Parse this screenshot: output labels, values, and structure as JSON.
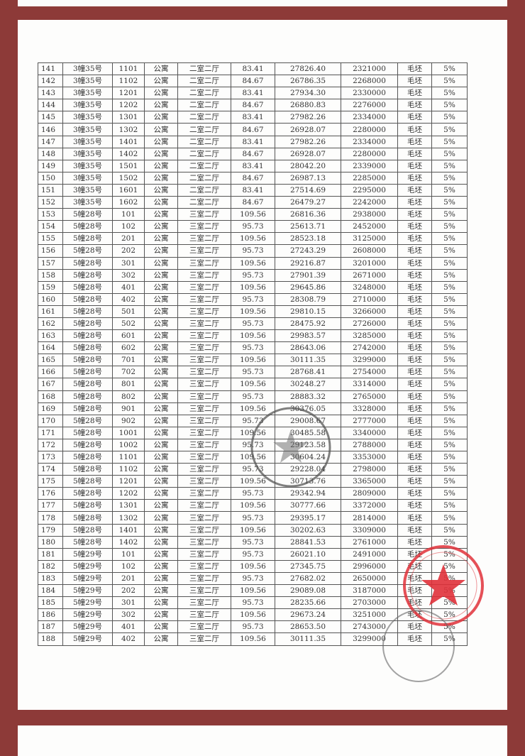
{
  "table": {
    "rows": [
      [
        "141",
        "3幢35号",
        "1101",
        "公寓",
        "二室二厅",
        "83.41",
        "27826.40",
        "2321000",
        "毛坯",
        "5%"
      ],
      [
        "142",
        "3幢35号",
        "1102",
        "公寓",
        "二室二厅",
        "84.67",
        "26786.35",
        "2268000",
        "毛坯",
        "5%"
      ],
      [
        "143",
        "3幢35号",
        "1201",
        "公寓",
        "二室二厅",
        "83.41",
        "27934.30",
        "2330000",
        "毛坯",
        "5%"
      ],
      [
        "144",
        "3幢35号",
        "1202",
        "公寓",
        "二室二厅",
        "84.67",
        "26880.83",
        "2276000",
        "毛坯",
        "5%"
      ],
      [
        "145",
        "3幢35号",
        "1301",
        "公寓",
        "二室二厅",
        "83.41",
        "27982.26",
        "2334000",
        "毛坯",
        "5%"
      ],
      [
        "146",
        "3幢35号",
        "1302",
        "公寓",
        "二室二厅",
        "84.67",
        "26928.07",
        "2280000",
        "毛坯",
        "5%"
      ],
      [
        "147",
        "3幢35号",
        "1401",
        "公寓",
        "二室二厅",
        "83.41",
        "27982.26",
        "2334000",
        "毛坯",
        "5%"
      ],
      [
        "148",
        "3幢35号",
        "1402",
        "公寓",
        "二室二厅",
        "84.67",
        "26928.07",
        "2280000",
        "毛坯",
        "5%"
      ],
      [
        "149",
        "3幢35号",
        "1501",
        "公寓",
        "二室二厅",
        "83.41",
        "28042.20",
        "2339000",
        "毛坯",
        "5%"
      ],
      [
        "150",
        "3幢35号",
        "1502",
        "公寓",
        "二室二厅",
        "84.67",
        "26987.13",
        "2285000",
        "毛坯",
        "5%"
      ],
      [
        "151",
        "3幢35号",
        "1601",
        "公寓",
        "二室二厅",
        "83.41",
        "27514.69",
        "2295000",
        "毛坯",
        "5%"
      ],
      [
        "152",
        "3幢35号",
        "1602",
        "公寓",
        "二室二厅",
        "84.67",
        "26479.27",
        "2242000",
        "毛坯",
        "5%"
      ],
      [
        "153",
        "5幢28号",
        "101",
        "公寓",
        "三室二厅",
        "109.56",
        "26816.36",
        "2938000",
        "毛坯",
        "5%"
      ],
      [
        "154",
        "5幢28号",
        "102",
        "公寓",
        "三室二厅",
        "95.73",
        "25613.71",
        "2452000",
        "毛坯",
        "5%"
      ],
      [
        "155",
        "5幢28号",
        "201",
        "公寓",
        "三室二厅",
        "109.56",
        "28523.18",
        "3125000",
        "毛坯",
        "5%"
      ],
      [
        "156",
        "5幢28号",
        "202",
        "公寓",
        "三室二厅",
        "95.73",
        "27243.29",
        "2608000",
        "毛坯",
        "5%"
      ],
      [
        "157",
        "5幢28号",
        "301",
        "公寓",
        "三室二厅",
        "109.56",
        "29216.87",
        "3201000",
        "毛坯",
        "5%"
      ],
      [
        "158",
        "5幢28号",
        "302",
        "公寓",
        "三室二厅",
        "95.73",
        "27901.39",
        "2671000",
        "毛坯",
        "5%"
      ],
      [
        "159",
        "5幢28号",
        "401",
        "公寓",
        "三室二厅",
        "109.56",
        "29645.86",
        "3248000",
        "毛坯",
        "5%"
      ],
      [
        "160",
        "5幢28号",
        "402",
        "公寓",
        "三室二厅",
        "95.73",
        "28308.79",
        "2710000",
        "毛坯",
        "5%"
      ],
      [
        "161",
        "5幢28号",
        "501",
        "公寓",
        "三室二厅",
        "109.56",
        "29810.15",
        "3266000",
        "毛坯",
        "5%"
      ],
      [
        "162",
        "5幢28号",
        "502",
        "公寓",
        "三室二厅",
        "95.73",
        "28475.92",
        "2726000",
        "毛坯",
        "5%"
      ],
      [
        "163",
        "5幢28号",
        "601",
        "公寓",
        "三室二厅",
        "109.56",
        "29983.57",
        "3285000",
        "毛坯",
        "5%"
      ],
      [
        "164",
        "5幢28号",
        "602",
        "公寓",
        "三室二厅",
        "95.73",
        "28643.06",
        "2742000",
        "毛坯",
        "5%"
      ],
      [
        "165",
        "5幢28号",
        "701",
        "公寓",
        "三室二厅",
        "109.56",
        "30111.35",
        "3299000",
        "毛坯",
        "5%"
      ],
      [
        "166",
        "5幢28号",
        "702",
        "公寓",
        "三室二厅",
        "95.73",
        "28768.41",
        "2754000",
        "毛坯",
        "5%"
      ],
      [
        "167",
        "5幢28号",
        "801",
        "公寓",
        "三室二厅",
        "109.56",
        "30248.27",
        "3314000",
        "毛坯",
        "5%"
      ],
      [
        "168",
        "5幢28号",
        "802",
        "公寓",
        "三室二厅",
        "95.73",
        "28883.32",
        "2765000",
        "毛坯",
        "5%"
      ],
      [
        "169",
        "5幢28号",
        "901",
        "公寓",
        "三室二厅",
        "109.56",
        "30376.05",
        "3328000",
        "毛坯",
        "5%"
      ],
      [
        "170",
        "5幢28号",
        "902",
        "公寓",
        "三室二厅",
        "95.73",
        "29008.67",
        "2777000",
        "毛坯",
        "5%"
      ],
      [
        "171",
        "5幢28号",
        "1001",
        "公寓",
        "三室二厅",
        "109.56",
        "30485.58",
        "3340000",
        "毛坯",
        "5%"
      ],
      [
        "172",
        "5幢28号",
        "1002",
        "公寓",
        "三室二厅",
        "95.73",
        "29123.58",
        "2788000",
        "毛坯",
        "5%"
      ],
      [
        "173",
        "5幢28号",
        "1101",
        "公寓",
        "三室二厅",
        "109.56",
        "30604.24",
        "3353000",
        "毛坯",
        "5%"
      ],
      [
        "174",
        "5幢28号",
        "1102",
        "公寓",
        "三室二厅",
        "95.73",
        "29228.04",
        "2798000",
        "毛坯",
        "5%"
      ],
      [
        "175",
        "5幢28号",
        "1201",
        "公寓",
        "三室二厅",
        "109.56",
        "30713.76",
        "3365000",
        "毛坯",
        "5%"
      ],
      [
        "176",
        "5幢28号",
        "1202",
        "公寓",
        "三室二厅",
        "95.73",
        "29342.94",
        "2809000",
        "毛坯",
        "5%"
      ],
      [
        "177",
        "5幢28号",
        "1301",
        "公寓",
        "三室二厅",
        "109.56",
        "30777.66",
        "3372000",
        "毛坯",
        "5%"
      ],
      [
        "178",
        "5幢28号",
        "1302",
        "公寓",
        "三室二厅",
        "95.73",
        "29395.17",
        "2814000",
        "毛坯",
        "5%"
      ],
      [
        "179",
        "5幢28号",
        "1401",
        "公寓",
        "三室二厅",
        "109.56",
        "30202.63",
        "3309000",
        "毛坯",
        "5%"
      ],
      [
        "180",
        "5幢28号",
        "1402",
        "公寓",
        "三室二厅",
        "95.73",
        "28841.53",
        "2761000",
        "毛坯",
        "5%"
      ],
      [
        "181",
        "5幢29号",
        "101",
        "公寓",
        "三室二厅",
        "95.73",
        "26021.10",
        "2491000",
        "毛坯",
        "5%"
      ],
      [
        "182",
        "5幢29号",
        "102",
        "公寓",
        "三室二厅",
        "109.56",
        "27345.75",
        "2996000",
        "毛坯",
        "5%"
      ],
      [
        "183",
        "5幢29号",
        "201",
        "公寓",
        "三室二厅",
        "95.73",
        "27682.02",
        "2650000",
        "毛坯",
        "5%"
      ],
      [
        "184",
        "5幢29号",
        "202",
        "公寓",
        "三室二厅",
        "109.56",
        "29089.08",
        "3187000",
        "毛坯",
        "5%"
      ],
      [
        "185",
        "5幢29号",
        "301",
        "公寓",
        "三室二厅",
        "95.73",
        "28235.66",
        "2703000",
        "毛坯",
        "5%"
      ],
      [
        "186",
        "5幢29号",
        "302",
        "公寓",
        "三室二厅",
        "109.56",
        "29673.24",
        "3251000",
        "毛坯",
        "5%"
      ],
      [
        "187",
        "5幢29号",
        "401",
        "公寓",
        "三室二厅",
        "95.73",
        "28653.50",
        "2743000",
        "毛坯",
        "5%"
      ],
      [
        "188",
        "5幢29号",
        "402",
        "公寓",
        "三室二厅",
        "109.56",
        "30111.35",
        "3299000",
        "毛坯",
        "5%"
      ]
    ]
  },
  "colors": {
    "frame": "#8d3a38",
    "red_stamp": "#e0313a",
    "gray_stamp": "#555555"
  }
}
